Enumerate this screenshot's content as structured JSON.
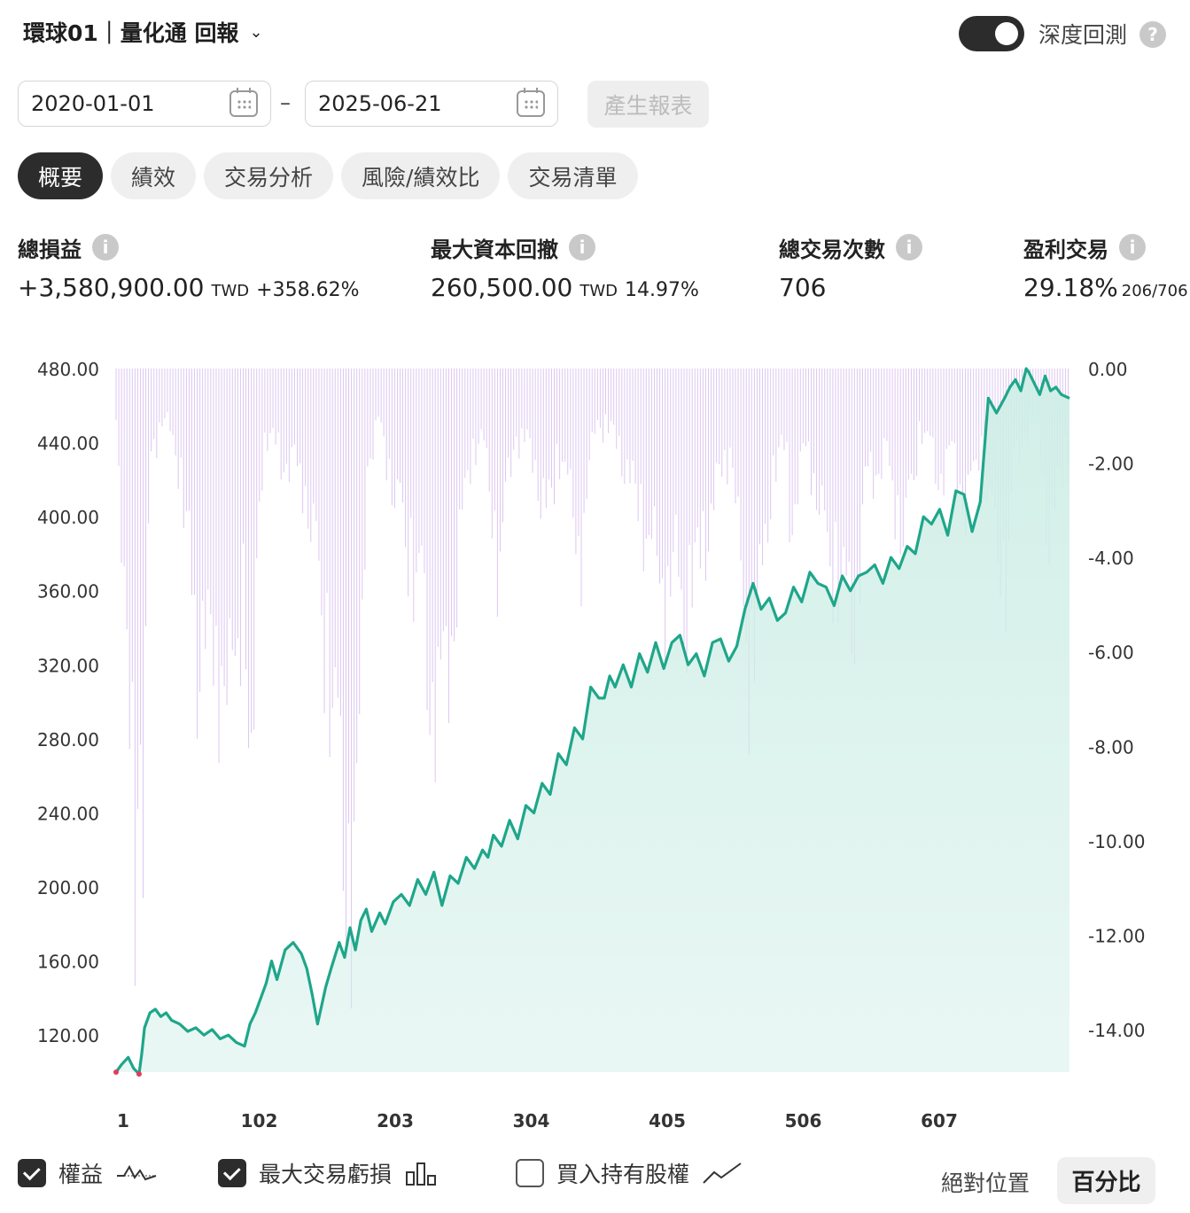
{
  "header": {
    "title": "環球01｜量化通 回報",
    "deep_backtest_label": "深度回測"
  },
  "date_range": {
    "start": "2020-01-01",
    "separator": "–",
    "end": "2025-06-21",
    "generate_label": "產生報表"
  },
  "tabs": [
    {
      "label": "概要",
      "active": true
    },
    {
      "label": "績效",
      "active": false
    },
    {
      "label": "交易分析",
      "active": false
    },
    {
      "label": "風險/績效比",
      "active": false
    },
    {
      "label": "交易清單",
      "active": false
    }
  ],
  "metrics": {
    "total_pnl": {
      "label": "總損益",
      "value": "+3,580,900.00",
      "unit": "TWD",
      "pct": "+358.62%"
    },
    "max_drawdown": {
      "label": "最大資本回撤",
      "value": "260,500.00",
      "unit": "TWD",
      "pct": "14.97%"
    },
    "total_trades": {
      "label": "總交易次數",
      "value": "706"
    },
    "profitable_trades": {
      "label": "盈利交易",
      "value": "29.18%",
      "ratio": "206/706"
    }
  },
  "legend": {
    "equity_label": "權益",
    "max_loss_label": "最大交易虧損",
    "buy_hold_label": "買入持有股權",
    "absolute_label": "絕對位置",
    "percent_label": "百分比"
  },
  "colors": {
    "equity_line": "#1fa68a",
    "equity_fill": "#cfeee6",
    "drawdown_bars": "#dcc6f0",
    "negative": "#e23d5a"
  },
  "chart_data": {
    "type": "line",
    "xlabel": "",
    "ylabel": "",
    "x_ticks": [
      1,
      102,
      203,
      304,
      405,
      506,
      607
    ],
    "x_range": [
      1,
      706
    ],
    "y_left_ticks": [
      "480.00",
      "440.00",
      "400.00",
      "360.00",
      "320.00",
      "280.00",
      "240.00",
      "200.00",
      "160.00",
      "120.00"
    ],
    "y_left_range": [
      100,
      480
    ],
    "y_right_ticks": [
      "0.00",
      "-2.00",
      "-4.00",
      "-6.00",
      "-8.00",
      "-10.00",
      "-12.00",
      "-14.00"
    ],
    "y_right_range": [
      -14.9,
      0
    ],
    "series": [
      {
        "name": "權益",
        "x": [
          1,
          5,
          10,
          14,
          18,
          20,
          22,
          26,
          30,
          34,
          38,
          42,
          48,
          54,
          60,
          66,
          72,
          78,
          84,
          90,
          96,
          100,
          104,
          108,
          112,
          116,
          120,
          126,
          132,
          138,
          142,
          146,
          150,
          156,
          160,
          166,
          170,
          174,
          178,
          182,
          186,
          190,
          196,
          200,
          206,
          212,
          218,
          224,
          230,
          236,
          242,
          248,
          254,
          260,
          266,
          272,
          276,
          280,
          286,
          292,
          298,
          304,
          310,
          316,
          322,
          328,
          334,
          340,
          346,
          352,
          358,
          362,
          366,
          370,
          376,
          382,
          388,
          394,
          400,
          406,
          412,
          418,
          424,
          430,
          436,
          442,
          448,
          454,
          460,
          466,
          472,
          478,
          484,
          490,
          496,
          502,
          508,
          514,
          520,
          526,
          532,
          538,
          544,
          550,
          556,
          562,
          568,
          574,
          580,
          586,
          592,
          598,
          604,
          610,
          616,
          622,
          628,
          634,
          640,
          646,
          652,
          658,
          662,
          666,
          670,
          672,
          674,
          676,
          680,
          684,
          688,
          692,
          696,
          700,
          706
        ],
        "y": [
          100,
          104,
          108,
          102,
          99,
          110,
          124,
          132,
          134,
          130,
          132,
          128,
          126,
          122,
          124,
          120,
          123,
          118,
          120,
          116,
          114,
          126,
          132,
          140,
          148,
          160,
          150,
          166,
          170,
          164,
          156,
          142,
          126,
          146,
          156,
          170,
          162,
          178,
          166,
          182,
          188,
          176,
          186,
          180,
          192,
          196,
          190,
          204,
          196,
          208,
          190,
          206,
          202,
          216,
          210,
          220,
          216,
          228,
          222,
          236,
          226,
          244,
          240,
          256,
          250,
          272,
          266,
          286,
          280,
          308,
          302,
          302,
          314,
          308,
          320,
          308,
          326,
          316,
          332,
          318,
          332,
          336,
          320,
          326,
          314,
          332,
          334,
          322,
          330,
          350,
          364,
          350,
          356,
          344,
          348,
          362,
          354,
          370,
          364,
          362,
          352,
          368,
          360,
          368,
          370,
          374,
          364,
          378,
          372,
          384,
          380,
          400,
          396,
          404,
          390,
          414,
          412,
          392,
          408,
          464,
          456,
          464,
          470,
          474,
          468,
          474,
          480,
          478,
          472,
          466,
          476,
          468,
          470,
          466,
          464
        ]
      },
      {
        "name": "最大交易虧損",
        "x": [
          1,
          8,
          14,
          16,
          18,
          21,
          26,
          36,
          46,
          56,
          60,
          66,
          72,
          80,
          86,
          96,
          100,
          102,
          106,
          112,
          120,
          140,
          150,
          162,
          168,
          174,
          178,
          182,
          186,
          196,
          206,
          216,
          226,
          232,
          244,
          252,
          262,
          270,
          276,
          284,
          296,
          310,
          320,
          330,
          344,
          356,
          372,
          384,
          396,
          408,
          416,
          420,
          432,
          444,
          456,
          464,
          470,
          476,
          486,
          496,
          500,
          512,
          526,
          540,
          548,
          556,
          570,
          584,
          596,
          610,
          620,
          630,
          640,
          650,
          660,
          664,
          670,
          682,
          690,
          694,
          698,
          706
        ],
        "y": [
          -1.2,
          -8.2,
          -12.1,
          -14.6,
          -8.6,
          -14.8,
          -2.4,
          -1.4,
          -2.3,
          -5.7,
          -8.8,
          -6.7,
          -9.2,
          -8.1,
          -9.9,
          -5.5,
          -12.9,
          -14.1,
          -3.6,
          -1.9,
          -2.4,
          -3.2,
          -5.8,
          -10.1,
          -12.6,
          -14.6,
          -14.8,
          -10.4,
          -2.7,
          -1.6,
          -3.4,
          -5.1,
          -6.2,
          -9.0,
          -9.5,
          -6.4,
          -2.8,
          -1.8,
          -3.1,
          -5.7,
          -1.8,
          -2.6,
          -4.4,
          -2.2,
          -5.4,
          -1.4,
          -2.1,
          -3.6,
          -4.9,
          -6.5,
          -5.4,
          -7.1,
          -5.6,
          -3.6,
          -2.1,
          -6.6,
          -8.6,
          -7.1,
          -3.0,
          -2.3,
          -4.4,
          -2.1,
          -5.0,
          -6.6,
          -7.0,
          -3.1,
          -2.6,
          -4.9,
          -1.6,
          -3.1,
          -2.4,
          -4.2,
          -2.1,
          -4.9,
          -5.9,
          -3.3,
          -2.1,
          -1.2,
          -4.6,
          -5.0,
          -3.1,
          -2.4
        ]
      }
    ]
  }
}
